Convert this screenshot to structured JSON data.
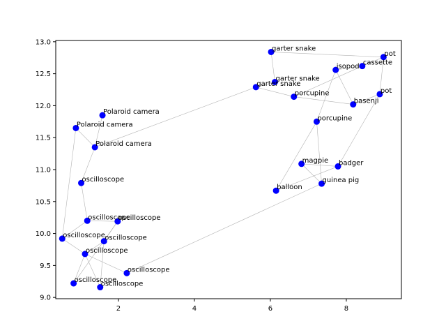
{
  "chart_data": {
    "type": "scatter",
    "title": "",
    "xlabel": "",
    "ylabel": "",
    "xlim": [
      0.35,
      9.45
    ],
    "ylim": [
      8.98,
      13.02
    ],
    "xticks": [
      2,
      4,
      6,
      8
    ],
    "xtick_labels": [
      "2",
      "4",
      "6",
      "8"
    ],
    "yticks": [
      9.0,
      9.5,
      10.0,
      10.5,
      11.0,
      11.5,
      12.0,
      12.5,
      13.0
    ],
    "ytick_labels": [
      "9.0",
      "9.5",
      "10.0",
      "10.5",
      "11.0",
      "11.5",
      "12.0",
      "12.5",
      "13.0"
    ],
    "grid": false,
    "point_color": "#0000ff",
    "edge_color": "#b3b3b3",
    "points": [
      {
        "x": 6.02,
        "y": 12.84,
        "label": "garter snake"
      },
      {
        "x": 8.98,
        "y": 12.76,
        "label": "pot"
      },
      {
        "x": 8.42,
        "y": 12.62,
        "label": "cassette"
      },
      {
        "x": 7.72,
        "y": 12.56,
        "label": "isopod"
      },
      {
        "x": 6.12,
        "y": 12.37,
        "label": "garter snake"
      },
      {
        "x": 5.62,
        "y": 12.29,
        "label": "garter snake"
      },
      {
        "x": 6.62,
        "y": 12.14,
        "label": "porcupine"
      },
      {
        "x": 8.88,
        "y": 12.18,
        "label": "pot"
      },
      {
        "x": 8.18,
        "y": 12.02,
        "label": "basenji"
      },
      {
        "x": 7.22,
        "y": 11.75,
        "label": "porcupine"
      },
      {
        "x": 1.58,
        "y": 11.85,
        "label": "Polaroid camera"
      },
      {
        "x": 0.88,
        "y": 11.65,
        "label": "Polaroid camera"
      },
      {
        "x": 1.38,
        "y": 11.35,
        "label": "Polaroid camera"
      },
      {
        "x": 6.82,
        "y": 11.09,
        "label": "magpie"
      },
      {
        "x": 7.78,
        "y": 11.05,
        "label": "badger"
      },
      {
        "x": 7.35,
        "y": 10.78,
        "label": "guinea pig"
      },
      {
        "x": 6.15,
        "y": 10.67,
        "label": "balloon"
      },
      {
        "x": 1.02,
        "y": 10.79,
        "label": "oscilloscope"
      },
      {
        "x": 1.18,
        "y": 10.2,
        "label": "oscilloscope"
      },
      {
        "x": 1.98,
        "y": 10.19,
        "label": "oscilloscope"
      },
      {
        "x": 0.52,
        "y": 9.92,
        "label": "oscilloscope"
      },
      {
        "x": 1.62,
        "y": 9.88,
        "label": "oscilloscope"
      },
      {
        "x": 1.12,
        "y": 9.68,
        "label": "oscilloscope"
      },
      {
        "x": 2.22,
        "y": 9.38,
        "label": "oscilloscope"
      },
      {
        "x": 0.82,
        "y": 9.22,
        "label": "oscilloscope"
      },
      {
        "x": 1.52,
        "y": 9.16,
        "label": "oscilloscope"
      }
    ],
    "edges": [
      [
        0,
        1
      ],
      [
        0,
        4
      ],
      [
        1,
        2
      ],
      [
        1,
        7
      ],
      [
        2,
        3
      ],
      [
        2,
        6
      ],
      [
        3,
        8
      ],
      [
        3,
        9
      ],
      [
        4,
        5
      ],
      [
        5,
        6
      ],
      [
        6,
        8
      ],
      [
        7,
        8
      ],
      [
        7,
        14
      ],
      [
        9,
        15
      ],
      [
        9,
        16
      ],
      [
        13,
        14
      ],
      [
        13,
        15
      ],
      [
        14,
        16
      ],
      [
        5,
        12
      ],
      [
        10,
        12
      ],
      [
        11,
        12
      ],
      [
        11,
        20
      ],
      [
        12,
        17
      ],
      [
        17,
        18
      ],
      [
        18,
        19
      ],
      [
        18,
        20
      ],
      [
        19,
        21
      ],
      [
        19,
        24
      ],
      [
        20,
        22
      ],
      [
        21,
        22
      ],
      [
        21,
        25
      ],
      [
        22,
        23
      ],
      [
        22,
        24
      ],
      [
        22,
        25
      ],
      [
        23,
        15
      ]
    ]
  }
}
